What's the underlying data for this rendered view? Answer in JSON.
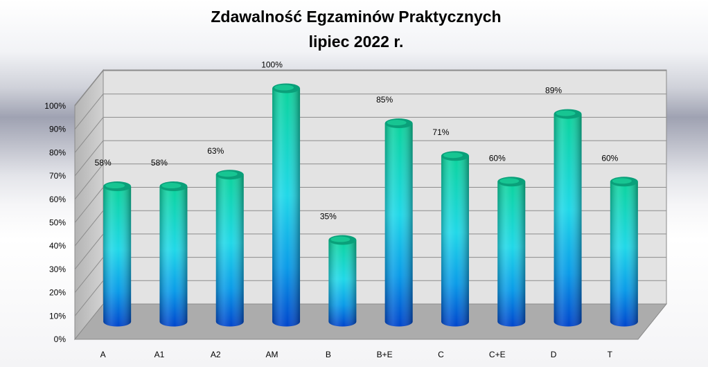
{
  "chart_data": {
    "type": "bar",
    "title": "Zdawalność Egzaminów Praktycznych",
    "subtitle": "lipiec 2022 r.",
    "categories": [
      "A",
      "A1",
      "A2",
      "AM",
      "B",
      "B+E",
      "C",
      "C+E",
      "D",
      "T"
    ],
    "values": [
      58,
      58,
      63,
      100,
      35,
      85,
      71,
      60,
      89,
      60
    ],
    "value_labels": [
      "58%",
      "58%",
      "63%",
      "100%",
      "35%",
      "85%",
      "71%",
      "60%",
      "89%",
      "60%"
    ],
    "ylim": [
      0,
      100
    ],
    "yticks": [
      "0%",
      "10%",
      "20%",
      "30%",
      "40%",
      "50%",
      "60%",
      "70%",
      "80%",
      "90%",
      "100%"
    ],
    "xlabel": "",
    "ylabel": "",
    "grid": true,
    "legend": "none",
    "style": "3d-cylinder",
    "colors": {
      "bar_top": "#0ccf9a",
      "bar_mid": "#22d6e6",
      "bar_bottom": "#0050d8",
      "cap": "#0a8f6e",
      "floor": "#aeaeae",
      "wall": "#e4e4e4"
    }
  }
}
